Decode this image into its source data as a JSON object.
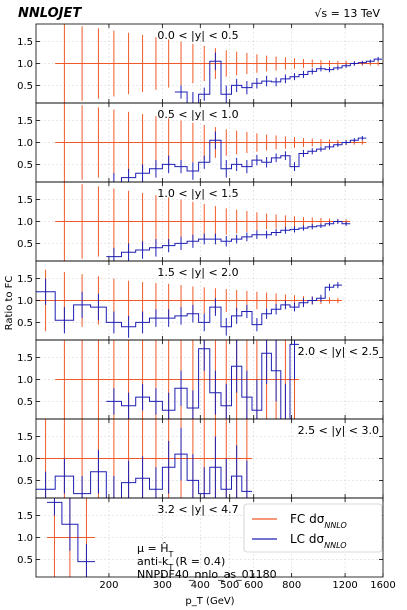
{
  "header": {
    "logo": "NNLOJET",
    "energy": "√s = 13 TeV"
  },
  "legend": {
    "fc_label": "FC dσ",
    "fc_sub": "NNLO",
    "lc_label": "LC dσ",
    "lc_sub": "NNLO",
    "position": "lower-right"
  },
  "annotations": {
    "mu_line": "μ = Ĥ",
    "mu_sub": "T",
    "jet_line": "anti-k",
    "jet_sub": "T",
    "jet_tail": "(R = 0.4)",
    "pdf_line": "NNPDF40_nnlo_as_01180"
  },
  "colors": {
    "fc": "#f05a28",
    "lc": "#1f1fb4",
    "grid": "#d0d0d0",
    "unity": "#888888"
  },
  "chart_data": {
    "type": "line",
    "title": "",
    "xlabel": "p_T (GeV)",
    "ylabel": "Ratio to FC",
    "xscale": "log",
    "xlim": [
      115,
      1600
    ],
    "x_ticks": [
      200,
      300,
      400,
      500,
      600,
      800,
      1200,
      1600
    ],
    "ylim": [
      0.1,
      1.9
    ],
    "y_ticks": [
      0.5,
      1.0,
      1.5
    ],
    "grid": true,
    "panels": [
      {
        "label": "0.0 < |y| < 0.5",
        "label_align": "center",
        "pt_edges": [
          133,
          153,
          174,
          196,
          220,
          245,
          272,
          300,
          330,
          362,
          395,
          430,
          468,
          507,
          548,
          592,
          638,
          686,
          737,
          790,
          846,
          905,
          967,
          1032,
          1101,
          1172,
          1248,
          1327,
          1410,
          1497,
          1588
        ],
        "fc_error": [
          0.9,
          0.85,
          0.8,
          0.75,
          0.7,
          0.65,
          0.6,
          0.55,
          0.5,
          0.45,
          0.4,
          0.35,
          0.3,
          0.27,
          0.24,
          0.21,
          0.18,
          0.16,
          0.14,
          0.12,
          0.1,
          0.09,
          0.08,
          0.07,
          0.06,
          0.06,
          0.05,
          0.05,
          0.05,
          0.05
        ],
        "lc": [
          -1,
          -1,
          -1,
          -1,
          -1,
          -1,
          -1,
          -1,
          0.35,
          0.05,
          0.3,
          1.05,
          0.3,
          0.5,
          0.45,
          0.55,
          0.6,
          0.58,
          0.65,
          0.7,
          0.75,
          0.82,
          0.88,
          0.86,
          0.9,
          0.95,
          1.0,
          1.02,
          1.05,
          1.1
        ],
        "lc_error": [
          0,
          0,
          0,
          0,
          0,
          0,
          0,
          0,
          0.15,
          0.3,
          0.15,
          0.2,
          0.2,
          0.15,
          0.15,
          0.12,
          0.12,
          0.1,
          0.1,
          0.08,
          0.08,
          0.07,
          0.06,
          0.06,
          0.05,
          0.05,
          0.05,
          0.04,
          0.04,
          0.05
        ]
      },
      {
        "label": "0.5 < |y| < 1.0",
        "label_align": "center",
        "pt_edges": [
          133,
          153,
          174,
          196,
          220,
          245,
          272,
          300,
          330,
          362,
          395,
          430,
          468,
          507,
          548,
          592,
          638,
          686,
          737,
          790,
          846,
          905,
          967,
          1032,
          1101,
          1172,
          1248,
          1327,
          1410
        ],
        "fc_error": [
          0.9,
          0.85,
          0.8,
          0.75,
          0.7,
          0.65,
          0.6,
          0.55,
          0.5,
          0.45,
          0.4,
          0.35,
          0.3,
          0.27,
          0.24,
          0.21,
          0.18,
          0.16,
          0.14,
          0.12,
          0.1,
          0.09,
          0.08,
          0.07,
          0.06,
          0.06,
          0.05,
          0.05
        ],
        "lc": [
          -1,
          -1,
          -1,
          0.1,
          0.2,
          0.3,
          0.4,
          0.5,
          0.45,
          0.35,
          0.55,
          1.05,
          0.4,
          0.5,
          0.45,
          0.6,
          0.55,
          0.65,
          0.7,
          0.45,
          0.75,
          0.8,
          0.85,
          0.9,
          0.95,
          1.0,
          1.05,
          1.1
        ],
        "lc_error": [
          0,
          0,
          0,
          0.2,
          0.2,
          0.2,
          0.2,
          0.2,
          0.15,
          0.2,
          0.15,
          0.2,
          0.2,
          0.15,
          0.15,
          0.12,
          0.12,
          0.1,
          0.1,
          0.1,
          0.08,
          0.07,
          0.06,
          0.06,
          0.05,
          0.05,
          0.05,
          0.05
        ]
      },
      {
        "label": "1.0 < |y| < 1.5",
        "label_align": "center",
        "pt_edges": [
          133,
          153,
          174,
          196,
          220,
          245,
          272,
          300,
          330,
          362,
          395,
          430,
          468,
          507,
          548,
          592,
          638,
          686,
          737,
          790,
          846,
          905,
          967,
          1032,
          1101,
          1172,
          1248
        ],
        "fc_error": [
          0.9,
          0.85,
          0.8,
          0.75,
          0.7,
          0.65,
          0.6,
          0.55,
          0.5,
          0.45,
          0.4,
          0.35,
          0.3,
          0.27,
          0.24,
          0.21,
          0.18,
          0.16,
          0.14,
          0.12,
          0.1,
          0.09,
          0.08,
          0.07,
          0.06,
          0.05
        ],
        "lc": [
          -1,
          -1,
          -1,
          0.2,
          0.3,
          0.35,
          0.4,
          0.45,
          0.5,
          0.55,
          0.6,
          0.6,
          0.55,
          0.6,
          0.65,
          0.7,
          0.7,
          0.75,
          0.8,
          0.82,
          0.85,
          0.88,
          0.9,
          0.95,
          1.0,
          0.95
        ],
        "lc_error": [
          0,
          0,
          0,
          0.2,
          0.2,
          0.2,
          0.2,
          0.15,
          0.15,
          0.15,
          0.12,
          0.12,
          0.12,
          0.1,
          0.1,
          0.1,
          0.09,
          0.08,
          0.08,
          0.07,
          0.06,
          0.06,
          0.05,
          0.05,
          0.05,
          0.05
        ]
      },
      {
        "label": "1.5 < |y| < 2.0",
        "label_align": "center",
        "pt_edges": [
          115,
          133,
          153,
          174,
          196,
          220,
          245,
          272,
          300,
          330,
          362,
          395,
          430,
          468,
          507,
          548,
          592,
          638,
          686,
          737,
          790,
          846,
          905,
          967,
          1032,
          1101,
          1172
        ],
        "fc_error": [
          0.7,
          0.65,
          0.6,
          0.55,
          0.5,
          0.45,
          0.42,
          0.4,
          0.38,
          0.35,
          0.32,
          0.3,
          0.28,
          0.26,
          0.24,
          0.22,
          0.2,
          0.18,
          0.16,
          0.14,
          0.12,
          0.1,
          0.09,
          0.08,
          0.07,
          0.06
        ],
        "lc": [
          1.2,
          0.55,
          0.9,
          0.85,
          0.5,
          0.4,
          0.5,
          0.6,
          0.6,
          0.65,
          0.7,
          0.5,
          0.85,
          0.4,
          0.65,
          0.75,
          0.45,
          0.7,
          0.8,
          0.9,
          0.85,
          0.95,
          1.0,
          1.05,
          1.3,
          1.35
        ],
        "lc_error": [
          0.3,
          0.3,
          0.3,
          0.3,
          0.25,
          0.25,
          0.25,
          0.2,
          0.2,
          0.2,
          0.2,
          0.2,
          0.2,
          0.2,
          0.18,
          0.15,
          0.15,
          0.12,
          0.12,
          0.1,
          0.1,
          0.1,
          0.09,
          0.08,
          0.08,
          0.07
        ]
      },
      {
        "label": "2.0 < |y| < 2.5",
        "label_align": "right",
        "pt_edges": [
          133,
          153,
          174,
          196,
          220,
          245,
          272,
          300,
          330,
          362,
          395,
          430,
          468,
          507,
          548,
          592,
          638,
          686,
          737,
          790,
          846
        ],
        "fc_error": [
          0.9,
          0.9,
          0.9,
          0.9,
          0.9,
          0.9,
          0.9,
          0.9,
          0.9,
          0.9,
          0.9,
          0.9,
          0.9,
          0.9,
          0.9,
          0.9,
          0.9,
          0.9,
          0.9,
          0.9
        ],
        "lc": [
          -1,
          -1,
          -1,
          0.5,
          0.4,
          0.6,
          0.5,
          0.3,
          0.8,
          0.35,
          1.7,
          0.7,
          0.4,
          1.3,
          0.6,
          0.3,
          1.6,
          1.2,
          0.1,
          1.8
        ],
        "lc_error": [
          0,
          0,
          0,
          0.3,
          0.3,
          0.3,
          0.3,
          0.4,
          0.4,
          0.4,
          0.5,
          0.5,
          0.5,
          0.6,
          0.6,
          0.7,
          0.7,
          0.7,
          0.8,
          0.8
        ]
      },
      {
        "label": "2.5 < |y| < 3.0",
        "label_align": "right",
        "pt_edges": [
          115,
          133,
          153,
          174,
          196,
          220,
          245,
          272,
          300,
          330,
          362,
          395,
          430,
          468,
          507,
          548,
          592
        ],
        "fc_error": [
          0.9,
          0.9,
          0.9,
          0.9,
          0.9,
          0.9,
          0.9,
          0.9,
          0.9,
          0.9,
          0.9,
          0.9,
          0.9,
          0.9,
          0.9,
          0.9
        ],
        "lc": [
          0.3,
          0.6,
          0.2,
          0.7,
          0.1,
          0.45,
          0.55,
          0.3,
          0.8,
          1.1,
          0.5,
          0.2,
          0.8,
          0.3,
          0.6,
          0.25
        ],
        "lc_error": [
          0.4,
          0.4,
          0.4,
          0.5,
          0.5,
          0.5,
          0.5,
          0.5,
          0.6,
          0.6,
          0.6,
          0.6,
          0.7,
          0.7,
          0.7,
          0.7
        ]
      },
      {
        "label": "3.2 < |y| < 4.7",
        "label_align": "center",
        "pt_edges": [
          125,
          140,
          158,
          180
        ],
        "fc_error": [
          0.9,
          0.9,
          0.9
        ],
        "lc": [
          1.8,
          1.3,
          0.45
        ],
        "lc_error": [
          0.3,
          0.6,
          0.4
        ]
      }
    ]
  }
}
